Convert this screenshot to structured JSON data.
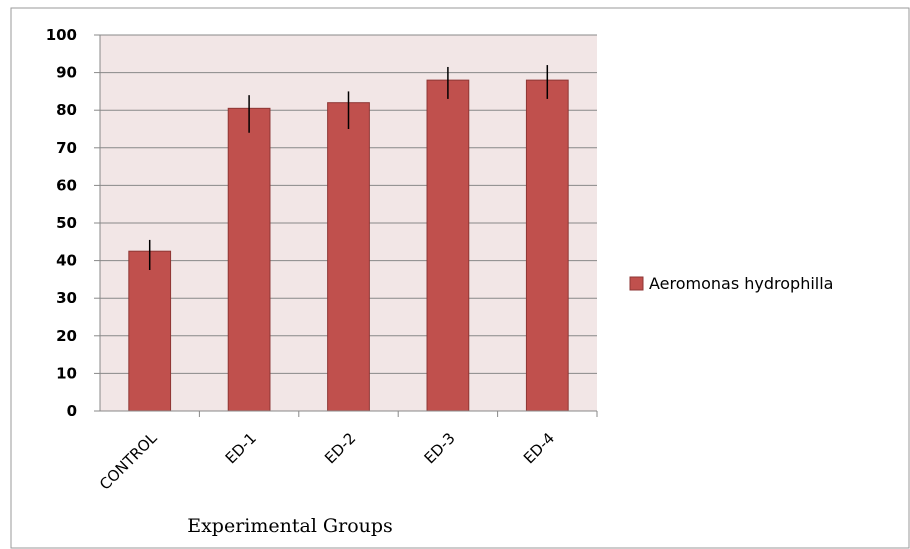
{
  "chart_data": {
    "type": "bar",
    "title": "",
    "xlabel": "Experimental Groups",
    "ylabel": "",
    "categories": [
      "CONTROL",
      "ED-1",
      "ED-2",
      "ED-3",
      "ED-4"
    ],
    "series": [
      {
        "name": "Aeromonas hydrophilla",
        "values": [
          42.5,
          80.5,
          82,
          88,
          88
        ],
        "error_low": [
          37.5,
          74,
          75,
          83,
          83
        ],
        "error_high": [
          45.5,
          84,
          85,
          91.5,
          92
        ]
      }
    ],
    "ylim": [
      0,
      100
    ],
    "yticks": [
      0,
      10,
      20,
      30,
      40,
      50,
      60,
      70,
      80,
      90,
      100
    ],
    "grid": true,
    "legend_position": "right",
    "colors": {
      "bar": "#c0504d",
      "bar_edge": "#8e3634",
      "plot_background": "#f2e6e6",
      "gridline": "#888888",
      "error_bar": "#000000"
    }
  }
}
